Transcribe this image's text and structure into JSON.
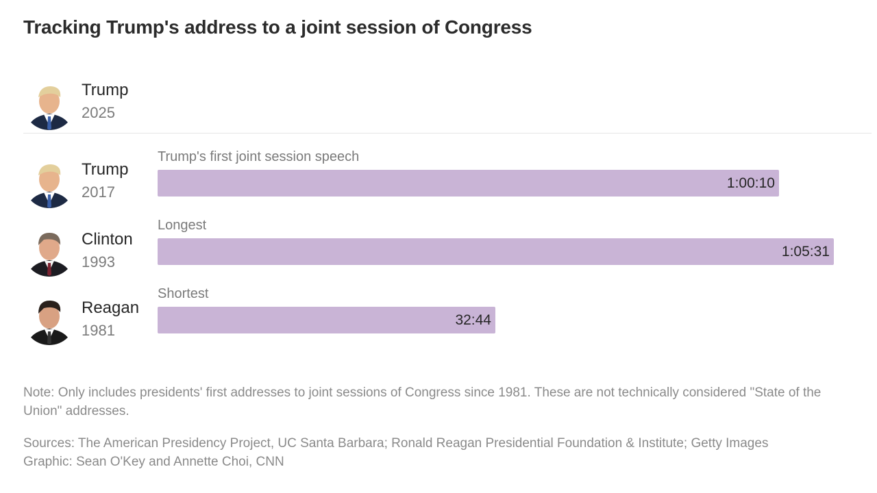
{
  "title": "Tracking Trump's address to a joint session of Congress",
  "current": {
    "name": "Trump",
    "year": "2025",
    "avatar_icon": "trump-portrait-icon"
  },
  "chart_data": {
    "type": "bar",
    "orientation": "horizontal",
    "unit": "seconds",
    "xlim": [
      0,
      4300
    ],
    "bars": [
      {
        "president": "Trump",
        "year": "2017",
        "label": "Trump's first joint session speech",
        "value_text": "1:00:10",
        "value": 3610,
        "avatar_icon": "trump-portrait-icon"
      },
      {
        "president": "Clinton",
        "year": "1993",
        "label": "Longest",
        "value_text": "1:05:31",
        "value": 3931,
        "avatar_icon": "clinton-portrait-icon"
      },
      {
        "president": "Reagan",
        "year": "1981",
        "label": "Shortest",
        "value_text": "32:44",
        "value": 1964,
        "avatar_icon": "reagan-portrait-icon"
      }
    ],
    "bar_color": "#c9b4d6"
  },
  "footer": {
    "note": "Note: Only includes presidents' first addresses to joint sessions of Congress since 1981. These are not technically considered \"State of the Union\" addresses.",
    "sources": "Sources: The American Presidency Project, UC Santa Barbara; Ronald Reagan Presidential Foundation & Institute; Getty Images",
    "graphic": "Graphic: Sean O'Key and Annette Choi, CNN"
  }
}
